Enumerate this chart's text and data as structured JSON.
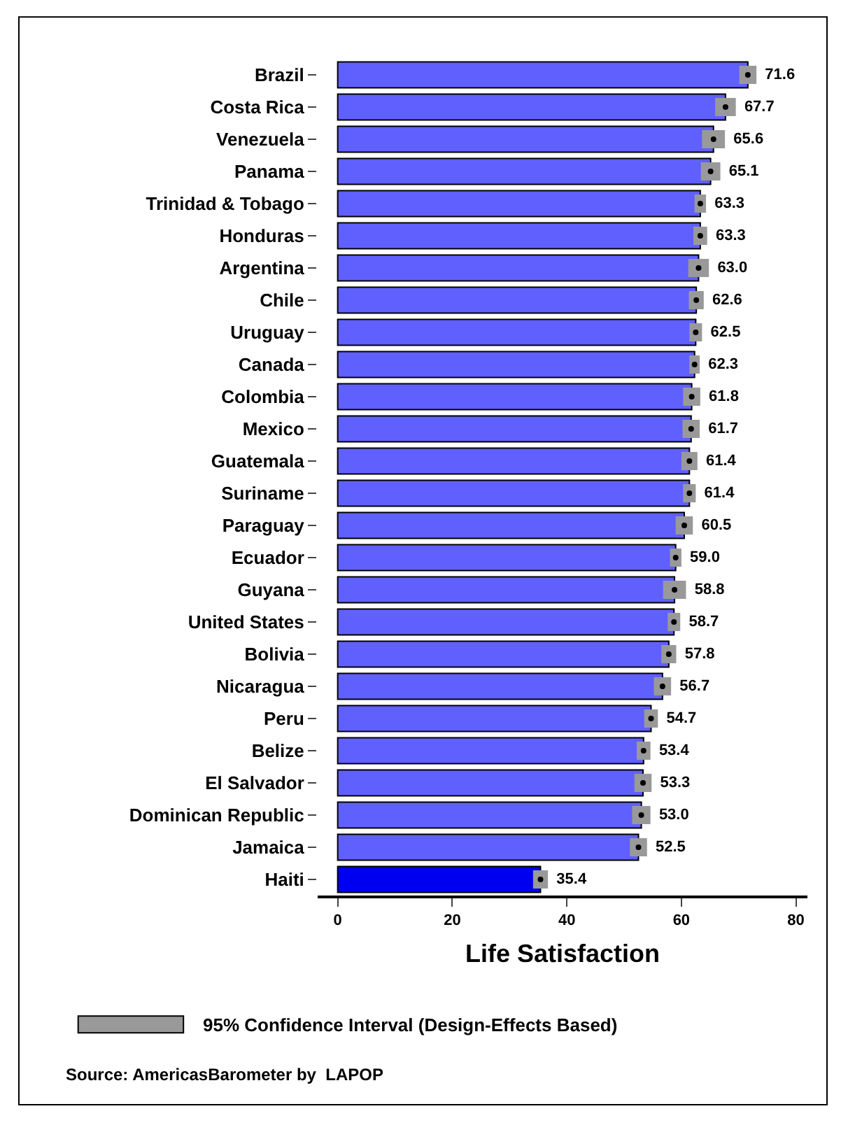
{
  "chart_data": {
    "type": "bar",
    "orientation": "horizontal",
    "xlabel": "Life Satisfaction",
    "categories": [
      "Brazil",
      "Costa Rica",
      "Venezuela",
      "Panama",
      "Trinidad & Tobago",
      "Honduras",
      "Argentina",
      "Chile",
      "Uruguay",
      "Canada",
      "Colombia",
      "Mexico",
      "Guatemala",
      "Suriname",
      "Paraguay",
      "Ecuador",
      "Guyana",
      "United States",
      "Bolivia",
      "Nicaragua",
      "Peru",
      "Belize",
      "El Salvador",
      "Dominican Republic",
      "Jamaica",
      "Haiti"
    ],
    "series": [
      {
        "colors": [
          "#6060ff",
          "#6060ff",
          "#6060ff",
          "#6060ff",
          "#6060ff",
          "#6060ff",
          "#6060ff",
          "#6060ff",
          "#6060ff",
          "#6060ff",
          "#6060ff",
          "#6060ff",
          "#6060ff",
          "#6060ff",
          "#6060ff",
          "#6060ff",
          "#6060ff",
          "#6060ff",
          "#6060ff",
          "#6060ff",
          "#6060ff",
          "#6060ff",
          "#6060ff",
          "#6060ff",
          "#6060ff",
          "#0000f0"
        ],
        "values": [
          71.6,
          67.7,
          65.6,
          65.1,
          63.3,
          63.3,
          63.0,
          62.6,
          62.5,
          62.3,
          61.8,
          61.7,
          61.4,
          61.4,
          60.5,
          59.0,
          58.8,
          58.7,
          57.8,
          56.7,
          54.7,
          53.4,
          53.3,
          53.0,
          52.5,
          35.4
        ],
        "value_labels": [
          "71.6",
          "67.7",
          "65.6",
          "65.1",
          "63.3",
          "63.3",
          "63.0",
          "62.6",
          "62.5",
          "62.3",
          "61.8",
          "61.7",
          "61.4",
          "61.4",
          "60.5",
          "59.0",
          "58.8",
          "58.7",
          "57.8",
          "56.7",
          "54.7",
          "53.4",
          "53.3",
          "53.0",
          "52.5",
          "35.4"
        ]
      },
      {
        "type": "scatter",
        "color": "#000000",
        "x": [
          "Brazil",
          "Costa Rica",
          "Venezuela",
          "Panama",
          "Trinidad & Tobago",
          "Honduras",
          "Argentina",
          "Chile",
          "Uruguay",
          "Canada",
          "Colombia",
          "Mexico",
          "Guatemala",
          "Suriname",
          "Paraguay",
          "Ecuador",
          "Guyana",
          "United States",
          "Bolivia",
          "Nicaragua",
          "Peru",
          "Belize",
          "El Salvador",
          "Dominican Republic",
          "Jamaica",
          "Haiti"
        ],
        "values": [
          71.6,
          67.7,
          65.6,
          65.1,
          63.3,
          63.3,
          63.0,
          62.6,
          62.5,
          62.3,
          61.8,
          61.7,
          61.4,
          61.4,
          60.5,
          59.0,
          58.8,
          58.7,
          57.8,
          56.7,
          54.7,
          53.4,
          53.3,
          53.0,
          52.5,
          35.4
        ],
        "errors": [
          1.5,
          1.8,
          2.0,
          1.7,
          1.0,
          1.2,
          1.8,
          1.3,
          1.1,
          0.9,
          1.5,
          1.5,
          1.4,
          1.1,
          1.5,
          1.0,
          2.0,
          1.1,
          1.3,
          1.5,
          1.2,
          1.2,
          1.5,
          1.6,
          1.5,
          1.3
        ]
      }
    ],
    "xlim": [
      -3.5,
      82
    ],
    "xticks": [
      0,
      20,
      40,
      60,
      80
    ],
    "marker": "circle",
    "annotations": [
      "95% Confidence Interval (Design-Effects Based)",
      "Source: AmericasBarometer by  LAPOP"
    ]
  }
}
